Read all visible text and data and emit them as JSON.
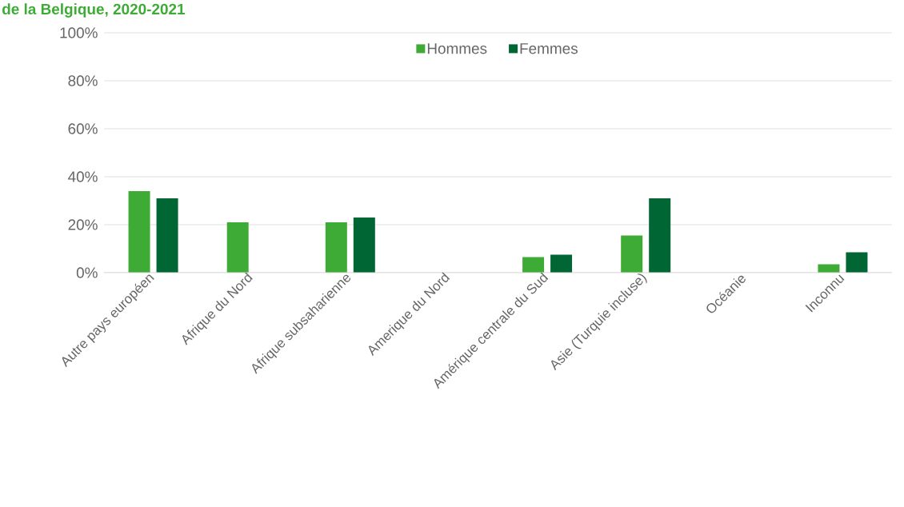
{
  "chart_data": {
    "type": "bar",
    "title": "de la Belgique, 2020-2021",
    "categories": [
      "Autre pays européen",
      "Afrique du Nord",
      "Afrique subsaharienne",
      "Amerique du Nord",
      "Amérique centrale du Sud",
      "Asie (Turquie incluse)",
      "Océanie",
      "Inconnu"
    ],
    "series": [
      {
        "name": "Hommes",
        "color": "#3dab35",
        "values": [
          34,
          21,
          21,
          0,
          6.5,
          15.5,
          0,
          3.5
        ]
      },
      {
        "name": "Femmes",
        "color": "#006633",
        "values": [
          31,
          0,
          23,
          0,
          7.5,
          31,
          0,
          8.5
        ]
      }
    ],
    "ylim": [
      0,
      100
    ],
    "yticks": [
      {
        "value": 0,
        "label": "0%"
      },
      {
        "value": 20,
        "label": "20%"
      },
      {
        "value": 40,
        "label": "40%"
      },
      {
        "value": 60,
        "label": "60%"
      },
      {
        "value": 80,
        "label": "80%"
      },
      {
        "value": 100,
        "label": "100%"
      }
    ],
    "grid": "y",
    "legend": "top"
  }
}
